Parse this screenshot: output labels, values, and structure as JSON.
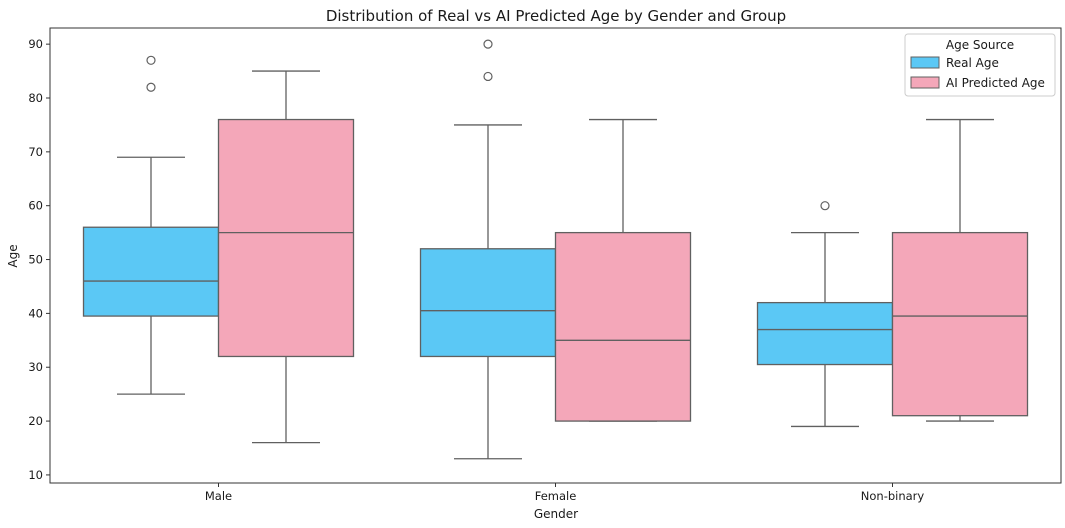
{
  "chart_data": {
    "type": "box",
    "title": "Distribution of Real vs AI Predicted Age by Gender and Group",
    "xlabel": "Gender",
    "ylabel": "Age",
    "ylim": [
      8.5,
      93
    ],
    "yticks": [
      10,
      20,
      30,
      40,
      50,
      60,
      70,
      80,
      90
    ],
    "categories": [
      "Male",
      "Female",
      "Non-binary"
    ],
    "legend": {
      "title": "Age Source",
      "position": "top-right"
    },
    "grid": false,
    "series": [
      {
        "name": "Real Age",
        "color": "#5bc8f5",
        "boxes": [
          {
            "whisker_low": 25,
            "q1": 39.5,
            "median": 46,
            "q3": 56,
            "whisker_high": 69,
            "outliers": [
              82,
              87
            ]
          },
          {
            "whisker_low": 13,
            "q1": 32,
            "median": 40.5,
            "q3": 52,
            "whisker_high": 75,
            "outliers": [
              84,
              90
            ]
          },
          {
            "whisker_low": 19,
            "q1": 30.5,
            "median": 37,
            "q3": 42,
            "whisker_high": 55,
            "outliers": [
              60
            ]
          }
        ]
      },
      {
        "name": "AI Predicted Age",
        "color": "#f4a7b9",
        "boxes": [
          {
            "whisker_low": 16,
            "q1": 32,
            "median": 55,
            "q3": 76,
            "whisker_high": 85,
            "outliers": []
          },
          {
            "whisker_low": 20,
            "q1": 20,
            "median": 35,
            "q3": 55,
            "whisker_high": 76,
            "outliers": []
          },
          {
            "whisker_low": 20,
            "q1": 21,
            "median": 39.5,
            "q3": 55,
            "whisker_high": 76,
            "outliers": []
          }
        ]
      }
    ]
  }
}
